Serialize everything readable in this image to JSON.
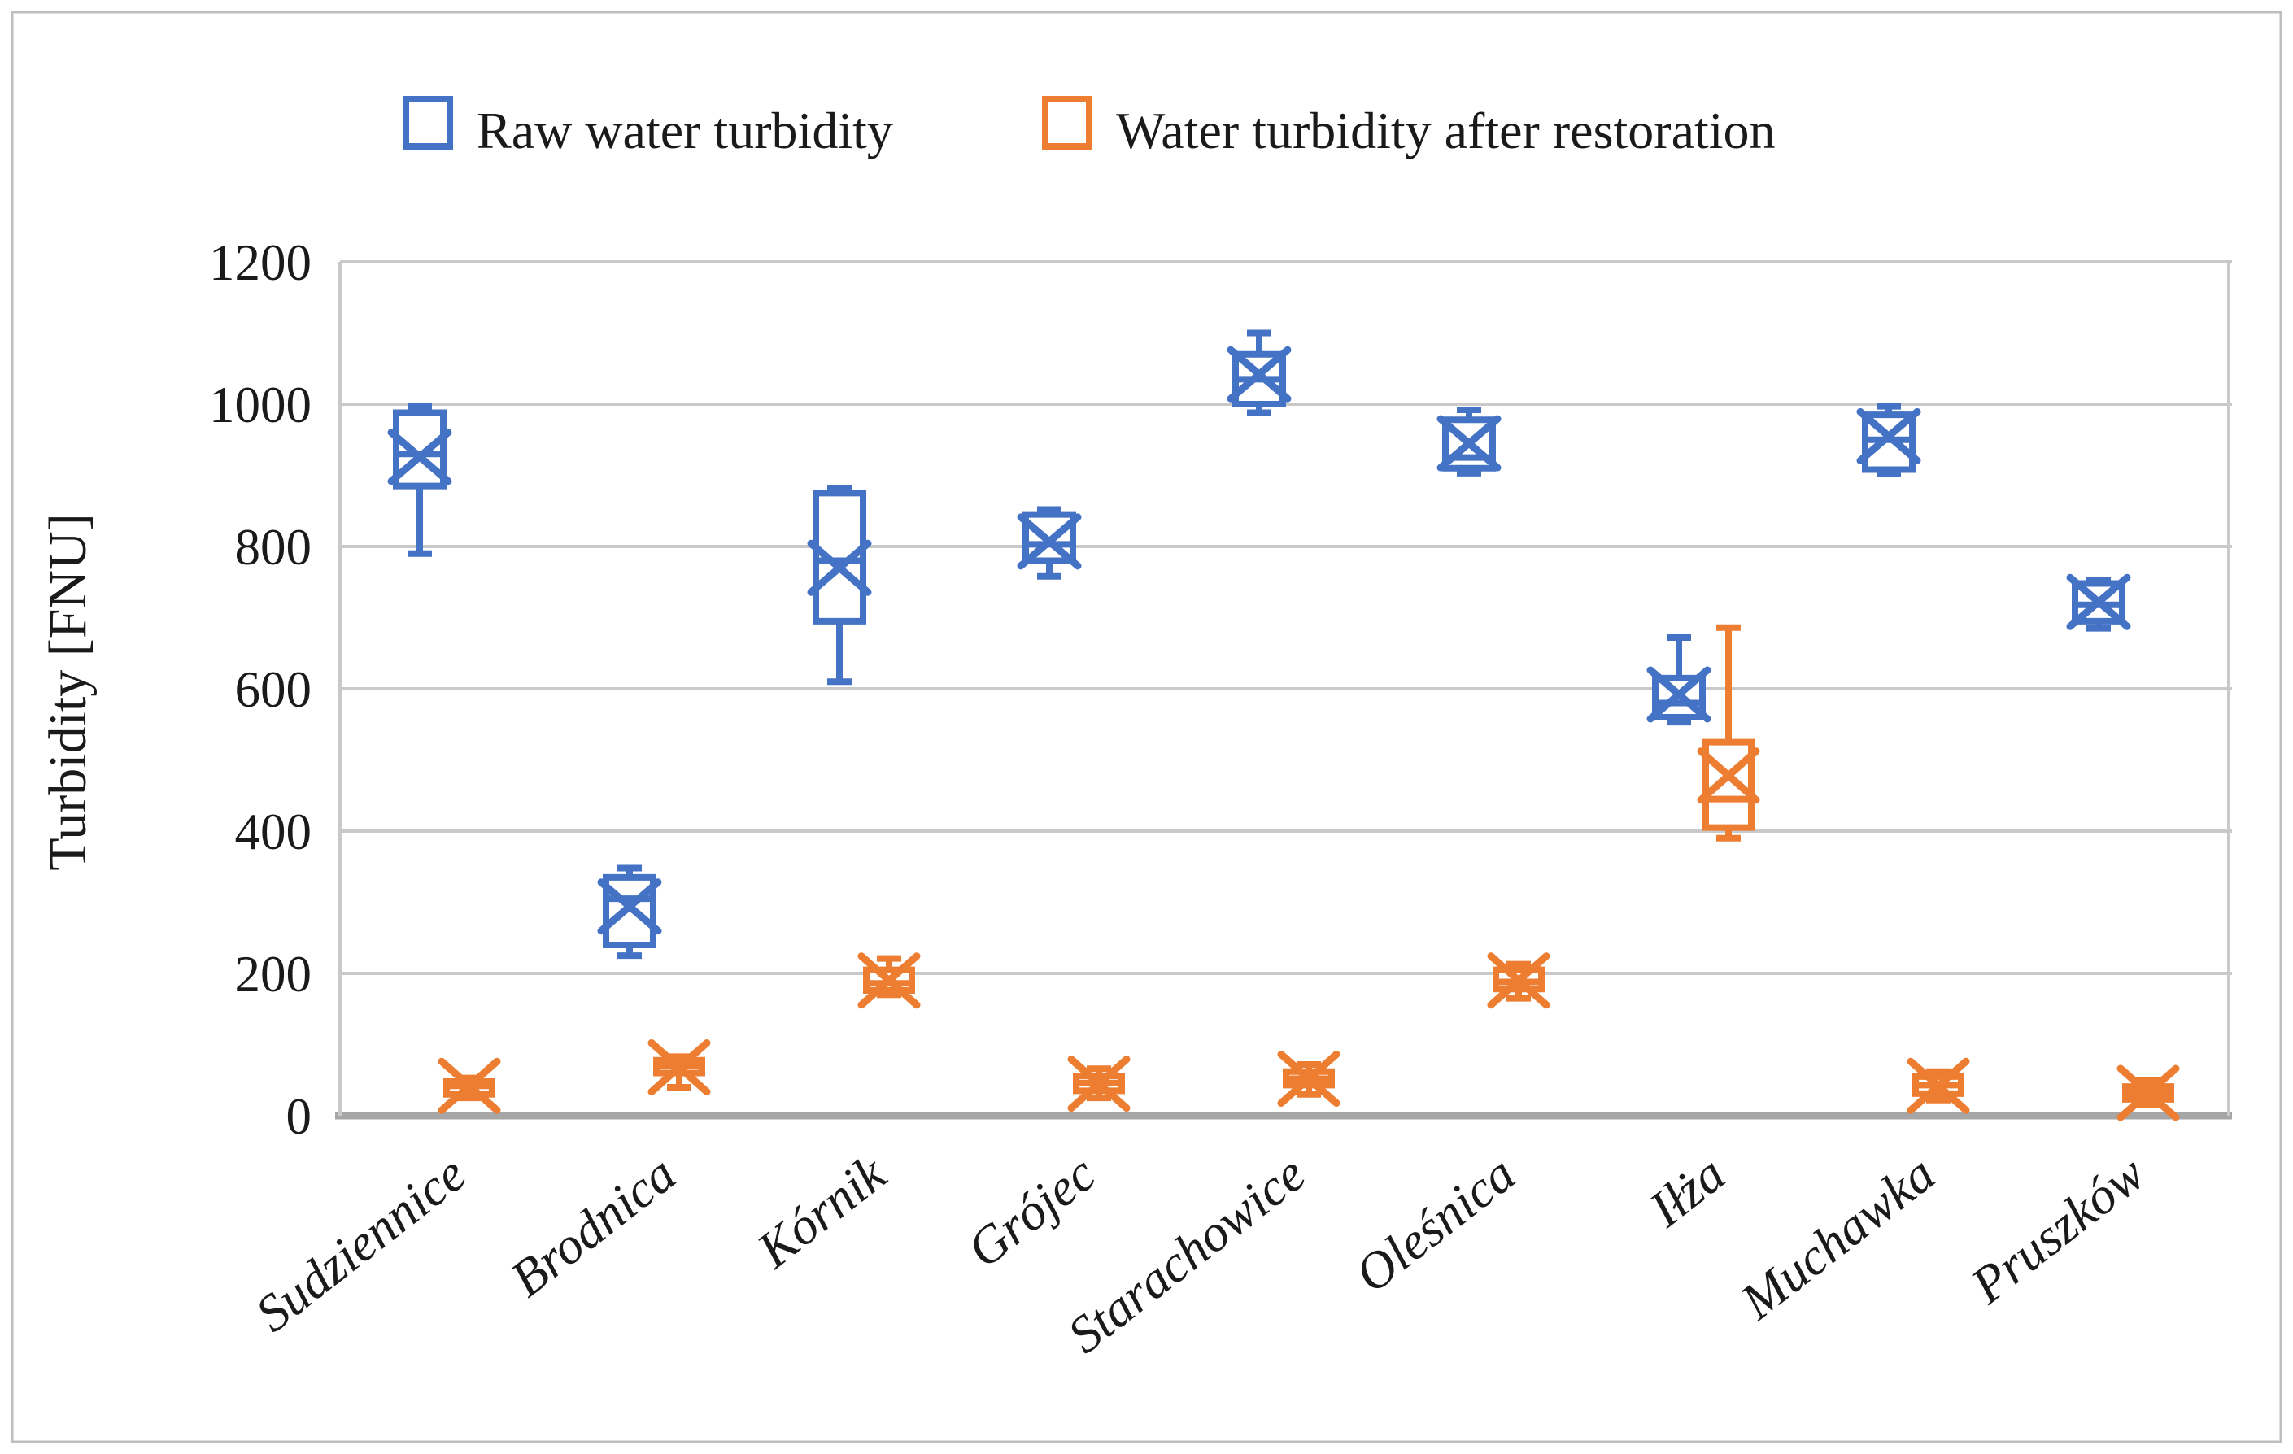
{
  "figure": {
    "background": "#ffffff",
    "border_color": "#bfbfbf"
  },
  "chart_data": {
    "type": "boxplot",
    "title": "",
    "ylabel": "Turbidity [FNU]",
    "xlabel": "",
    "ylim": [
      0,
      1200
    ],
    "yticks": [
      0,
      200,
      400,
      600,
      800,
      1000,
      1200
    ],
    "grid": "horizontal",
    "legend_position": "top",
    "colors": {
      "gridline": "#c9c9c9",
      "axis_line": "#a6a6a6",
      "frame": "#c9c9c9",
      "text": "#1a1a1a"
    },
    "categories": [
      "Sudziennice",
      "Brodnica",
      "Kórnik",
      "Grójec",
      "Starachowice",
      "Oleśnica",
      "Iłża",
      "Muchawka",
      "Pruszków"
    ],
    "series": [
      {
        "name": "Raw water turbidity",
        "color": "#4472C4",
        "boxes": [
          {
            "min": 790,
            "q1": 885,
            "median": 930,
            "q3": 988,
            "max": 997,
            "mean": 926
          },
          {
            "min": 225,
            "q1": 240,
            "median": 305,
            "q3": 335,
            "max": 348,
            "mean": 294
          },
          {
            "min": 610,
            "q1": 695,
            "median": 780,
            "q3": 875,
            "max": 882,
            "mean": 770
          },
          {
            "min": 758,
            "q1": 780,
            "median": 803,
            "q3": 845,
            "max": 852,
            "mean": 807
          },
          {
            "min": 988,
            "q1": 1000,
            "median": 1035,
            "q3": 1070,
            "max": 1100,
            "mean": 1042
          },
          {
            "min": 903,
            "q1": 910,
            "median": 925,
            "q3": 978,
            "max": 992,
            "mean": 945
          },
          {
            "min": 553,
            "q1": 560,
            "median": 580,
            "q3": 615,
            "max": 672,
            "mean": 592
          },
          {
            "min": 902,
            "q1": 908,
            "median": 950,
            "q3": 985,
            "max": 997,
            "mean": 955
          },
          {
            "min": 685,
            "q1": 695,
            "median": 718,
            "q3": 748,
            "max": 752,
            "mean": 722
          }
        ]
      },
      {
        "name": "Water turbidity after restoration",
        "color": "#ED7D31",
        "boxes": [
          {
            "min": 25,
            "q1": 30,
            "median": 42,
            "q3": 48,
            "max": 53,
            "mean": 42
          },
          {
            "min": 40,
            "q1": 60,
            "median": 70,
            "q3": 78,
            "max": 83,
            "mean": 68
          },
          {
            "min": 170,
            "q1": 176,
            "median": 186,
            "q3": 205,
            "max": 221,
            "mean": 190
          },
          {
            "min": 25,
            "q1": 35,
            "median": 46,
            "q3": 56,
            "max": 66,
            "mean": 45
          },
          {
            "min": 30,
            "q1": 43,
            "median": 52,
            "q3": 62,
            "max": 72,
            "mean": 52
          },
          {
            "min": 165,
            "q1": 178,
            "median": 188,
            "q3": 205,
            "max": 213,
            "mean": 190
          },
          {
            "min": 390,
            "q1": 405,
            "median": 445,
            "q3": 525,
            "max": 686,
            "mean": 478
          },
          {
            "min": 22,
            "q1": 31,
            "median": 43,
            "q3": 55,
            "max": 62,
            "mean": 42
          },
          {
            "min": 15,
            "q1": 23,
            "median": 32,
            "q3": 41,
            "max": 50,
            "mean": 32
          }
        ]
      }
    ]
  }
}
